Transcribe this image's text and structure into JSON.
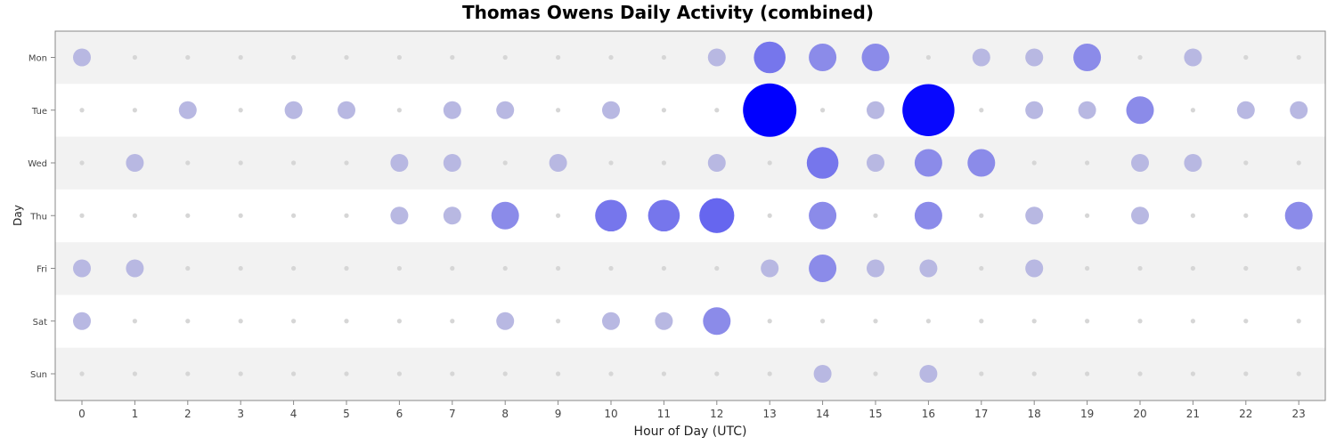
{
  "chart_data": {
    "type": "scatter",
    "subtype": "punchcard",
    "title": "Thomas Owens Daily Activity (combined)",
    "xlabel": "Hour of Day (UTC)",
    "ylabel": "Day",
    "x": [
      0,
      1,
      2,
      3,
      4,
      5,
      6,
      7,
      8,
      9,
      10,
      11,
      12,
      13,
      14,
      15,
      16,
      17,
      18,
      19,
      20,
      21,
      22,
      23
    ],
    "days": [
      "Mon",
      "Tue",
      "Wed",
      "Thu",
      "Fri",
      "Sat",
      "Sun"
    ],
    "values": [
      [
        2,
        0,
        0,
        0,
        0,
        0,
        0,
        0,
        0,
        0,
        0,
        0,
        2,
        6,
        4,
        4,
        0,
        2,
        2,
        4,
        0,
        2,
        0,
        0
      ],
      [
        0,
        0,
        2,
        0,
        2,
        2,
        0,
        2,
        2,
        0,
        2,
        0,
        0,
        28,
        0,
        2,
        26,
        0,
        2,
        2,
        4,
        0,
        2,
        2
      ],
      [
        0,
        2,
        0,
        0,
        0,
        0,
        2,
        2,
        0,
        2,
        0,
        0,
        2,
        0,
        6,
        2,
        4,
        4,
        0,
        0,
        2,
        2,
        0,
        0
      ],
      [
        0,
        0,
        0,
        0,
        0,
        0,
        2,
        2,
        4,
        0,
        6,
        6,
        8,
        0,
        4,
        0,
        4,
        0,
        2,
        0,
        2,
        0,
        0,
        4
      ],
      [
        2,
        2,
        0,
        0,
        0,
        0,
        0,
        0,
        0,
        0,
        0,
        0,
        0,
        2,
        4,
        2,
        2,
        0,
        2,
        0,
        0,
        0,
        0,
        0
      ],
      [
        2,
        0,
        0,
        0,
        0,
        0,
        0,
        0,
        2,
        0,
        2,
        2,
        4,
        0,
        0,
        0,
        0,
        0,
        0,
        0,
        0,
        0,
        0,
        0
      ],
      [
        0,
        0,
        0,
        0,
        0,
        0,
        0,
        0,
        0,
        0,
        0,
        0,
        0,
        0,
        2,
        0,
        2,
        0,
        0,
        0,
        0,
        0,
        0,
        0
      ]
    ],
    "colors": {
      "low": "#b8b8e2",
      "high": "#0000ff",
      "zero_dot": "#d6d6d6",
      "band_odd": "#f2f2f2",
      "band_even": "#ffffff"
    },
    "grid": false,
    "legend": "none"
  }
}
